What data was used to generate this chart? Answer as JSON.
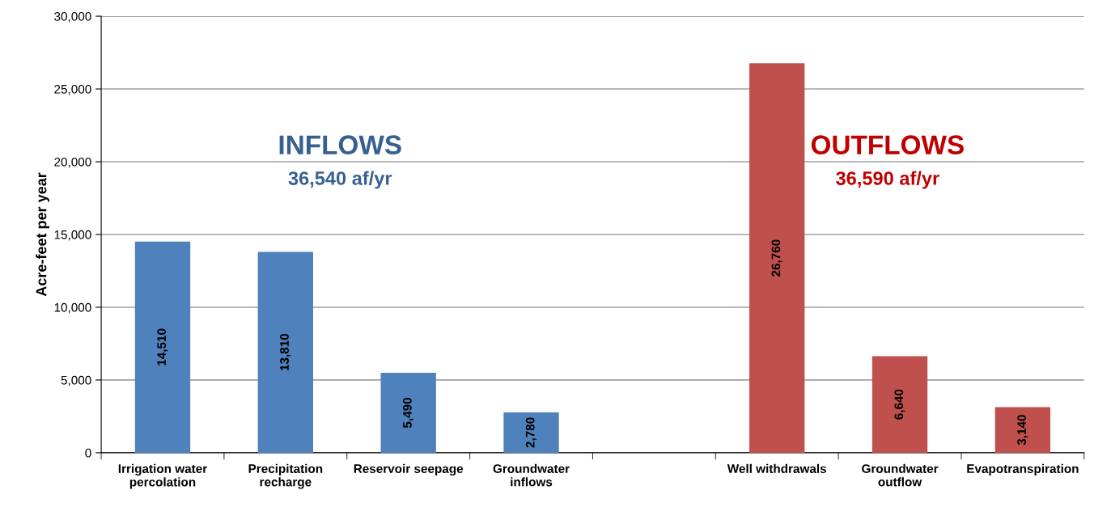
{
  "chart_data": {
    "type": "bar",
    "ylabel": "Acre-feet per year",
    "categories": [
      "Irrigation water\npercolation",
      "Precipitation\nrecharge",
      "Reservoir seepage",
      "Groundwater\ninflows",
      null,
      "Well withdrawals",
      "Groundwater\noutflow",
      "Evapotranspiration"
    ],
    "values": [
      14510,
      13810,
      5490,
      2780,
      null,
      26760,
      6640,
      3140
    ],
    "colors": [
      "#4f81bd",
      "#4f81bd",
      "#4f81bd",
      "#4f81bd",
      "#4f81bd",
      "#c0504d",
      "#c0504d",
      "#c0504d"
    ],
    "ylim": [
      0,
      30000
    ],
    "yticks": [
      0,
      {
        "value": 5000,
        "label": "5,000"
      },
      {
        "value": 10000,
        "label": "10,000"
      },
      {
        "value": 15000,
        "label": "15,000"
      },
      {
        "value": 20000,
        "label": "20,000"
      },
      {
        "value": 25000,
        "label": "25,000"
      },
      {
        "value": 30000,
        "label": "30,000"
      }
    ],
    "grid": "y",
    "value_labels": [
      "14,510",
      "13,810",
      "5,490",
      "2,780",
      null,
      "26,760",
      "6,640",
      "3,140"
    ],
    "annotations": [
      "INFLOWS",
      "36,540 af/yr",
      "OUTFLOWS",
      "36,590 af/yr"
    ]
  }
}
